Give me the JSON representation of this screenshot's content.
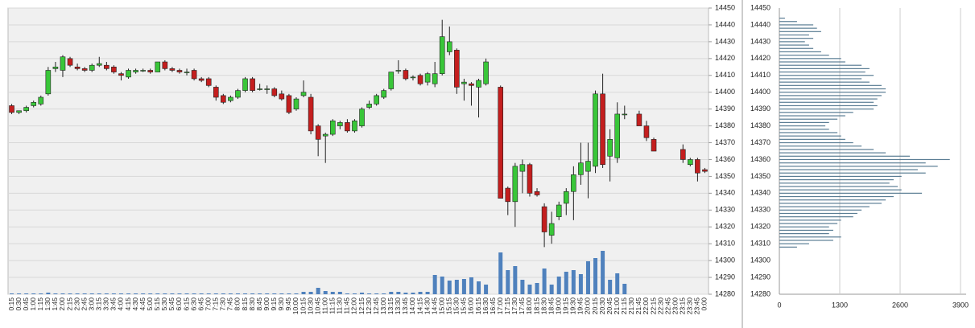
{
  "chart_data": [
    {
      "type": "candlestick",
      "categories": [
        "0:15",
        "0:30",
        "0:45",
        "1:00",
        "1:15",
        "1:30",
        "1:45",
        "2:00",
        "2:15",
        "2:30",
        "2:45",
        "3:00",
        "3:15",
        "3:30",
        "3:45",
        "4:00",
        "4:15",
        "4:30",
        "4:45",
        "5:00",
        "5:15",
        "5:30",
        "5:45",
        "6:00",
        "6:15",
        "6:30",
        "6:45",
        "7:00",
        "7:15",
        "7:30",
        "7:45",
        "8:00",
        "8:15",
        "8:30",
        "8:45",
        "9:00",
        "9:15",
        "9:30",
        "9:45",
        "10:00",
        "10:15",
        "10:30",
        "10:45",
        "11:00",
        "11:15",
        "11:30",
        "11:45",
        "12:00",
        "12:15",
        "12:30",
        "12:45",
        "13:00",
        "13:15",
        "13:30",
        "13:45",
        "14:00",
        "14:15",
        "14:30",
        "14:45",
        "15:00",
        "15:15",
        "15:30",
        "15:45",
        "16:00",
        "16:15",
        "16:30",
        "16:45",
        "17:00",
        "17:15",
        "17:30",
        "17:45",
        "18:00",
        "18:15",
        "18:30",
        "18:45",
        "19:00",
        "19:15",
        "19:30",
        "19:45",
        "20:00",
        "20:15",
        "20:30",
        "20:45",
        "21:00",
        "21:15",
        "21:30",
        "21:45",
        "22:00",
        "22:15",
        "22:30",
        "22:45",
        "23:00",
        "23:15",
        "23:30",
        "23:45",
        "0:00"
      ],
      "open": [
        14392,
        14388,
        14389,
        14392,
        14393,
        14399,
        14414,
        14413,
        14420,
        14415,
        14414,
        14413,
        14416,
        14416,
        14415,
        14411,
        14409,
        14412,
        14413,
        14413,
        14412,
        14418,
        14414,
        14413,
        14412,
        14413,
        14408,
        14408,
        14403,
        14398,
        14395,
        14397,
        14401,
        14408,
        14402,
        14402,
        14402,
        14399,
        14398,
        14390,
        14398,
        14397,
        14380,
        14374,
        14375,
        14380,
        14382,
        14377,
        14380,
        14391,
        14393,
        14397,
        14402,
        14413,
        14413,
        14409,
        14410,
        14406,
        14405,
        14411,
        14424,
        14425,
        14405,
        14405,
        14403,
        14405,
        null,
        14403,
        14343,
        14335,
        14353,
        14357,
        14341,
        14332,
        14315,
        14326,
        14334,
        14341,
        14351,
        14353,
        14356,
        14399,
        14362,
        14361,
        14387,
        null,
        14387,
        14380,
        14372,
        null,
        null,
        null,
        14366,
        14357,
        14360,
        14354
      ],
      "high": [
        14393,
        14389,
        14392,
        14395,
        14398,
        14415,
        14418,
        14422,
        14421,
        14417,
        14415,
        14417,
        14421,
        14418,
        14416,
        14412,
        14414,
        14414,
        14414,
        14414,
        14418,
        14419,
        14415,
        14414,
        14414,
        14414,
        14409,
        14409,
        14404,
        14399,
        14398,
        14402,
        14409,
        14409,
        14405,
        14404,
        14403,
        14401,
        14399,
        14397,
        14407,
        14399,
        14381,
        14376,
        14384,
        14383,
        14384,
        14384,
        14391,
        14395,
        14399,
        14402,
        14412,
        14419,
        14414,
        14410,
        14411,
        14412,
        14418,
        14443,
        14439,
        14426,
        14408,
        14406,
        14408,
        14420,
        null,
        14404,
        14344,
        14358,
        14360,
        14358,
        14343,
        14334,
        14329,
        14335,
        14343,
        14356,
        14370,
        14370,
        14401,
        14411,
        14378,
        14394,
        14392,
        null,
        14389,
        14383,
        14373,
        null,
        null,
        null,
        14369,
        14361,
        14361,
        14355
      ],
      "low": [
        14387,
        14387,
        14388,
        14391,
        14392,
        14398,
        14412,
        14409,
        14415,
        14413,
        14412,
        14412,
        14415,
        14413,
        14411,
        14407,
        14408,
        14411,
        14412,
        14411,
        14412,
        14413,
        14412,
        14411,
        14410,
        14407,
        14406,
        14403,
        14395,
        14393,
        14394,
        14396,
        14400,
        14400,
        14401,
        14399,
        14397,
        14395,
        14387,
        14389,
        14397,
        14375,
        14362,
        14358,
        14374,
        14378,
        14376,
        14376,
        14379,
        14390,
        14392,
        14396,
        14401,
        14411,
        14407,
        14407,
        14404,
        14404,
        14403,
        14410,
        14422,
        14399,
        14395,
        14392,
        14385,
        14404,
        null,
        14337,
        14327,
        14320,
        14340,
        14338,
        14338,
        14308,
        14310,
        14324,
        14327,
        14324,
        14345,
        14337,
        14352,
        14355,
        14347,
        14358,
        14384,
        null,
        14380,
        14371,
        14365,
        null,
        null,
        null,
        14358,
        14356,
        14347,
        14352
      ],
      "close": [
        14388,
        14389,
        14391,
        14394,
        14397,
        14413,
        14415,
        14421,
        14416,
        14414,
        14413,
        14416,
        14417,
        14414,
        14412,
        14410,
        14413,
        14413,
        14413,
        14412,
        14418,
        14414,
        14413,
        14412,
        14412,
        14408,
        14407,
        14404,
        14397,
        14394,
        14397,
        14401,
        14408,
        14401,
        14402,
        14402,
        14398,
        14396,
        14388,
        14396,
        14400,
        14377,
        14372,
        14375,
        14383,
        14382,
        14377,
        14383,
        14390,
        14393,
        14398,
        14401,
        14412,
        14413,
        14408,
        14409,
        14405,
        14411,
        14411,
        14433,
        14430,
        14403,
        14406,
        14404,
        14407,
        14418,
        null,
        14337,
        14335,
        14356,
        14357,
        14340,
        14339,
        14317,
        14322,
        14333,
        14341,
        14351,
        14358,
        14359,
        14399,
        14357,
        14372,
        14387,
        14387,
        null,
        14380,
        14373,
        14365,
        null,
        null,
        null,
        14360,
        14360,
        14352,
        14353
      ],
      "volume": [
        1,
        1,
        1,
        1,
        1,
        2,
        1,
        1,
        1,
        1,
        1,
        1,
        1,
        1,
        1,
        1,
        1,
        1,
        1,
        1,
        1,
        1,
        1,
        1,
        1,
        1,
        1,
        1,
        1,
        1,
        1,
        1,
        1,
        1,
        1,
        1,
        1,
        1,
        1,
        1,
        3,
        3,
        8,
        4,
        3,
        3,
        1,
        1,
        2,
        1,
        1,
        1,
        3,
        3,
        2,
        2,
        3,
        3,
        24,
        22,
        17,
        18,
        19,
        21,
        16,
        12,
        null,
        52,
        30,
        35,
        18,
        12,
        14,
        32,
        12,
        22,
        28,
        30,
        25,
        41,
        45,
        54,
        18,
        26,
        13,
        null,
        null,
        null,
        null,
        null,
        null,
        null,
        null,
        null,
        null,
        null
      ],
      "up_color": "#39c639",
      "down_color": "#c41e1e",
      "volume_color": "#4f81bd",
      "volume_lim": [
        0,
        60
      ],
      "ylim": [
        14280,
        14450
      ],
      "yticks": [
        14280,
        14290,
        14300,
        14310,
        14320,
        14330,
        14340,
        14350,
        14360,
        14370,
        14380,
        14390,
        14400,
        14410,
        14420,
        14430,
        14440,
        14450
      ],
      "grid": true
    },
    {
      "type": "profile",
      "levels": [
        14444,
        14442,
        14440,
        14438,
        14436,
        14434,
        14432,
        14430,
        14428,
        14426,
        14424,
        14422,
        14420,
        14418,
        14416,
        14414,
        14412,
        14410,
        14408,
        14406,
        14404,
        14402,
        14400,
        14398,
        14396,
        14394,
        14392,
        14390,
        14388,
        14386,
        14384,
        14382,
        14380,
        14378,
        14376,
        14374,
        14372,
        14370,
        14368,
        14366,
        14364,
        14362,
        14360,
        14358,
        14356,
        14354,
        14352,
        14350,
        14348,
        14346,
        14344,
        14342,
        14340,
        14338,
        14336,
        14334,
        14332,
        14330,
        14328,
        14326,
        14324,
        14322,
        14320,
        14318,
        14316,
        14314,
        14312,
        14310,
        14308
      ],
      "values": [
        120,
        380,
        730,
        810,
        900,
        640,
        730,
        550,
        640,
        730,
        900,
        1070,
        1330,
        1420,
        1770,
        1940,
        1850,
        2030,
        1770,
        1940,
        2200,
        2290,
        2290,
        2200,
        2110,
        2030,
        2110,
        2030,
        1590,
        1420,
        1250,
        1070,
        990,
        1070,
        1250,
        1330,
        1420,
        1590,
        1770,
        2030,
        2290,
        2810,
        3670,
        3150,
        3410,
        2980,
        3150,
        2630,
        2460,
        2370,
        2550,
        2630,
        3070,
        2460,
        2290,
        2200,
        1940,
        1770,
        1680,
        1590,
        1330,
        1250,
        1070,
        1160,
        1070,
        1330,
        1160,
        640,
        380
      ],
      "color": "#5a7d94",
      "ylim": [
        14280,
        14450
      ],
      "yticks": [
        14280,
        14290,
        14300,
        14310,
        14320,
        14330,
        14340,
        14350,
        14360,
        14370,
        14380,
        14390,
        14400,
        14410,
        14420,
        14430,
        14440,
        14450
      ],
      "xlim": [
        0,
        3900
      ],
      "xticks": [
        0,
        1300,
        2600,
        3900
      ],
      "grid": true
    }
  ]
}
